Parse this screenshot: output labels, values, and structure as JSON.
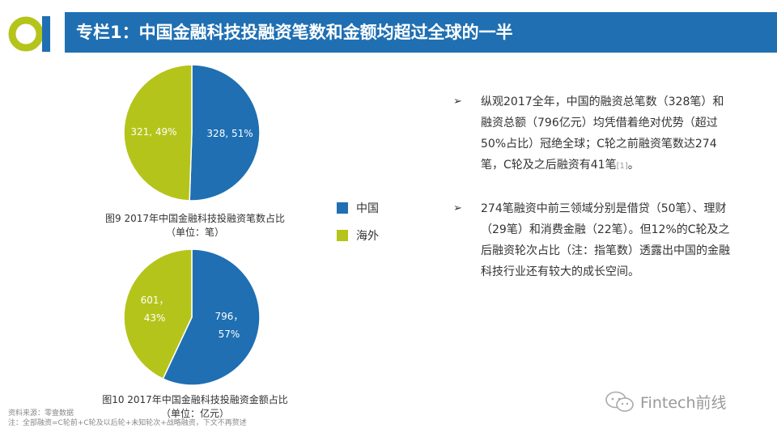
{
  "header": {
    "title": "专栏1：中国金融科技投融资笔数和金额均超过全球的一半"
  },
  "colors": {
    "china": "#1f6fb2",
    "overseas": "#b5c41a",
    "header_bg": "#1f6fb2"
  },
  "legend": {
    "items": [
      {
        "label": "中国",
        "color": "#1f6fb2"
      },
      {
        "label": "海外",
        "color": "#b5c41a"
      }
    ]
  },
  "chart_data": [
    {
      "type": "pie",
      "title": "图9   2017年中国金融科技投融资笔数占比",
      "subtitle": "（单位：笔）",
      "categories": [
        "中国",
        "海外"
      ],
      "values": [
        328,
        321
      ],
      "percentages": [
        51,
        49
      ],
      "data_labels": [
        "328, 51%",
        "321, 49%"
      ]
    },
    {
      "type": "pie",
      "title": "图10   2017年中国金融科技投融资金额占比",
      "subtitle": "（单位：亿元）",
      "categories": [
        "中国",
        "海外"
      ],
      "values": [
        796,
        601
      ],
      "percentages": [
        57,
        43
      ],
      "data_labels": [
        [
          "796，",
          "57%"
        ],
        [
          "601，",
          "43%"
        ]
      ]
    }
  ],
  "bullets": [
    {
      "text": "纵观2017全年，中国的融资总笔数（328笔）和融资总额（796亿元）均凭借着绝对优势（超过50%占比）冠绝全球；C轮之前融资笔数达274笔，C轮及之后融资有41笔",
      "ref": "[1]",
      "end": "。"
    },
    {
      "text": "274笔融资中前三领域分别是借贷（50笔）、理财（29笔）和消费金融（22笔）。但12%的C轮及之后融资轮次占比（注：指笔数）透露出中国的金融科技行业还有较大的成长空间。",
      "ref": "",
      "end": ""
    }
  ],
  "bullet_marker": "➢",
  "source": {
    "line1": "资料来源：零壹数据",
    "line2": "注：全部融资=C轮前+C轮及以后轮+未知轮次+战略融资，下文不再赘述"
  },
  "watermark": {
    "text": "Fintech前线",
    "icon": "wechat-icon"
  }
}
